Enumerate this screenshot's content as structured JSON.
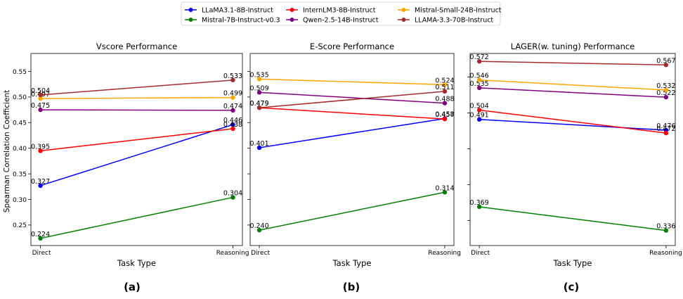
{
  "figure": {
    "ylabel": "Spearman Correlation Coefficient",
    "legend_position": "top-center",
    "panel_letters": [
      "(a)",
      "(b)",
      "(c)"
    ]
  },
  "series_colors": {
    "LLaMA3.1-8B-Instruct": "#0000ff",
    "Mistral-7B-Instruct-v0.3": "#008000",
    "InternLM3-8B-Instruct": "#ff0000",
    "Qwen-2.5-14B-Instruct": "#800080",
    "Mistral-Small-24B-Instruct": "#ffa500",
    "LLAMA-3.3-70B-Instruct": "#a52a2a"
  },
  "legend": [
    "LLaMA3.1-8B-Instruct",
    "Mistral-7B-Instruct-v0.3",
    "InternLM3-8B-Instruct",
    "Qwen-2.5-14B-Instruct",
    "Mistral-Small-24B-Instruct",
    "LLAMA-3.3-70B-Instruct"
  ],
  "chart_data": [
    {
      "type": "line",
      "title": "Vscore Performance",
      "xlabel": "Task Type",
      "ylabel": "Spearman Correlation Coefficient",
      "categories": [
        "Direct",
        "Reasoning"
      ],
      "ylim": [
        0.21,
        0.585
      ],
      "yticks": [
        "0.25",
        "0.30",
        "0.35",
        "0.40",
        "0.45",
        "0.50",
        "0.55"
      ],
      "grid": false,
      "series": [
        {
          "name": "LLaMA3.1-8B-Instruct",
          "values": [
            0.327,
            0.446
          ],
          "labels": [
            "0.327",
            "0.446"
          ]
        },
        {
          "name": "Mistral-7B-Instruct-v0.3",
          "values": [
            0.224,
            0.304
          ],
          "labels": [
            "0.224",
            "0.304"
          ]
        },
        {
          "name": "InternLM3-8B-Instruct",
          "values": [
            0.395,
            0.438
          ],
          "labels": [
            "0.395",
            "0.438"
          ]
        },
        {
          "name": "Qwen-2.5-14B-Instruct",
          "values": [
            0.475,
            0.474
          ],
          "labels": [
            "0.475",
            "0.474"
          ]
        },
        {
          "name": "Mistral-Small-24B-Instruct",
          "values": [
            0.497,
            0.499
          ],
          "labels": [
            "0.497",
            "0.499"
          ]
        },
        {
          "name": "LLAMA-3.3-70B-Instruct",
          "values": [
            0.504,
            0.533
          ],
          "labels": [
            "0.504",
            "0.533"
          ]
        }
      ]
    },
    {
      "type": "line",
      "title": "E-Score Performance",
      "xlabel": "Task Type",
      "categories": [
        "Direct",
        "Reasoning"
      ],
      "ylim": [
        0.21,
        0.585
      ],
      "yticks": [],
      "grid": false,
      "series": [
        {
          "name": "LLaMA3.1-8B-Instruct",
          "values": [
            0.401,
            0.458
          ],
          "labels": [
            "0.401",
            "0.458"
          ]
        },
        {
          "name": "Mistral-7B-Instruct-v0.3",
          "values": [
            0.24,
            0.314
          ],
          "labels": [
            "0.240",
            "0.314"
          ]
        },
        {
          "name": "InternLM3-8B-Instruct",
          "values": [
            0.479,
            0.457
          ],
          "labels": [
            "0.479",
            "0.457"
          ]
        },
        {
          "name": "Qwen-2.5-14B-Instruct",
          "values": [
            0.509,
            0.488
          ],
          "labels": [
            "0.509",
            "0.488"
          ]
        },
        {
          "name": "Mistral-Small-24B-Instruct",
          "values": [
            0.535,
            0.524
          ],
          "labels": [
            "0.535",
            "0.524"
          ]
        },
        {
          "name": "LLAMA-3.3-70B-Instruct",
          "values": [
            0.479,
            0.511
          ],
          "labels": [
            "0.479",
            "0.511"
          ]
        }
      ]
    },
    {
      "type": "line",
      "title": "LAGER(w. tuning) Performance",
      "xlabel": "Task Type",
      "categories": [
        "Direct",
        "Reasoning"
      ],
      "ylim": [
        0.315,
        0.583
      ],
      "yticks": [],
      "grid": false,
      "series": [
        {
          "name": "LLaMA3.1-8B-Instruct",
          "values": [
            0.491,
            0.476
          ],
          "labels": [
            "0.491",
            "0.476"
          ]
        },
        {
          "name": "Mistral-7B-Instruct-v0.3",
          "values": [
            0.369,
            0.336
          ],
          "labels": [
            "0.369",
            "0.336"
          ]
        },
        {
          "name": "InternLM3-8B-Instruct",
          "values": [
            0.504,
            0.472
          ],
          "labels": [
            "0.504",
            "0.472"
          ]
        },
        {
          "name": "Qwen-2.5-14B-Instruct",
          "values": [
            0.535,
            0.522
          ],
          "labels": [
            "0.535",
            "0.522"
          ]
        },
        {
          "name": "Mistral-Small-24B-Instruct",
          "values": [
            0.546,
            0.532
          ],
          "labels": [
            "0.546",
            "0.532"
          ]
        },
        {
          "name": "LLAMA-3.3-70B-Instruct",
          "values": [
            0.572,
            0.567
          ],
          "labels": [
            "0.572",
            "0.567"
          ]
        }
      ]
    }
  ]
}
